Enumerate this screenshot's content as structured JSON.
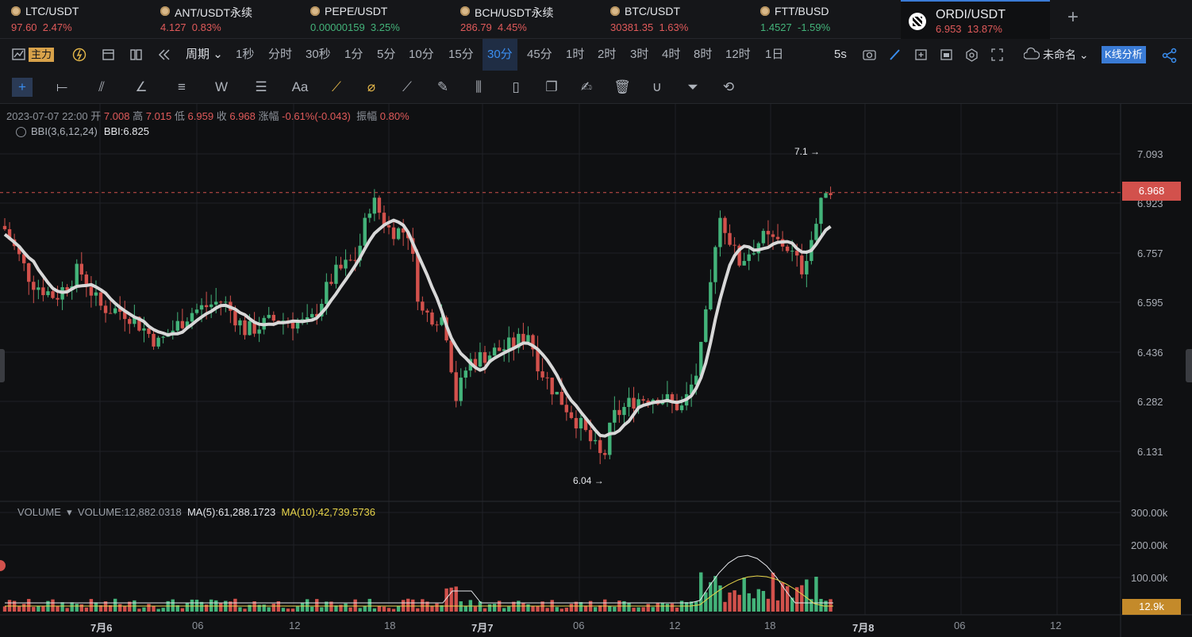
{
  "tickers": [
    {
      "symbol": "LTC/USDT",
      "price": "97.60",
      "change": "2.47%",
      "color": "red"
    },
    {
      "symbol": "ANT/USDT永续",
      "price": "4.127",
      "change": "0.83%",
      "color": "red"
    },
    {
      "symbol": "PEPE/USDT",
      "price": "0.00000159",
      "change": "3.25%",
      "color": "green"
    },
    {
      "symbol": "BCH/USDT永续",
      "price": "286.79",
      "change": "4.45%",
      "color": "red"
    },
    {
      "symbol": "BTC/USDT",
      "price": "30381.35",
      "change": "1.63%",
      "color": "red"
    },
    {
      "symbol": "FTT/BUSD",
      "price": "1.4527",
      "change": "-1.59%",
      "color": "green"
    },
    {
      "symbol": "ORDI/USDT",
      "price": "6.953",
      "change": "13.87%",
      "color": "red",
      "active": true
    }
  ],
  "add_tab_icon": "plus-icon",
  "toolbar": {
    "main_label": "主力",
    "period_label": "周期",
    "intervals": [
      "1秒",
      "分时",
      "30秒",
      "1分",
      "5分",
      "10分",
      "15分",
      "30分",
      "45分",
      "1时",
      "2时",
      "3时",
      "4时",
      "8时",
      "12时",
      "1日"
    ],
    "selected_interval": "30分",
    "refresh": "5s",
    "unnamed": "未命名",
    "kline_analysis": "K线分析"
  },
  "drawing_tools": [
    "crosshair-icon",
    "horizontal-line-icon",
    "parallel-channel-icon",
    "angle-icon",
    "fib-icon",
    "wave-icon",
    "gann-icon",
    "text-icon",
    "brush-icon",
    "eraser-icon",
    "ruler-icon",
    "pen-icon",
    "candles-icon",
    "lock-icon",
    "duplicate-icon",
    "note-icon",
    "trash-icon",
    "magnet-icon",
    "filter-icon",
    "sync-icon"
  ],
  "ohlc": {
    "date": "2023-07-07 22:00",
    "open_label": "开",
    "open": "7.008",
    "high_label": "高",
    "high": "7.015",
    "low_label": "低",
    "low": "6.959",
    "close_label": "收",
    "close": "6.968",
    "chg_label": "涨幅",
    "chg": "-0.61%(-0.043)",
    "amp_label": "振幅",
    "amp": "0.80%"
  },
  "bbi": {
    "label": "BBI(3,6,12,24)",
    "value": "BBI:6.825"
  },
  "price_axis": [
    "7.093",
    "6.923",
    "6.757",
    "6.595",
    "6.436",
    "6.282",
    "6.131"
  ],
  "current_price": "6.968",
  "annotations": {
    "high_note": "7.1",
    "low_note": "6.04"
  },
  "volume": {
    "label": "VOLUME",
    "value": "VOLUME:12,882.0318",
    "ma5": "MA(5):61,288.1723",
    "ma10": "MA(10):42,739.5736",
    "axis": [
      "300.00k",
      "200.00k",
      "100.00k"
    ],
    "current": "12.9k"
  },
  "time_axis": [
    "7月6",
    "06",
    "12",
    "18",
    "7月7",
    "06",
    "12",
    "18",
    "7月8",
    "06",
    "12"
  ],
  "colors": {
    "up": "#43b37a",
    "down": "#d2514c",
    "bbi": "#d8d8d8",
    "ma10": "#e8d54a"
  },
  "chart_data": {
    "type": "candlestick",
    "interval": "30分",
    "symbol": "ORDI/USDT",
    "y_ticks": [
      7.093,
      6.923,
      6.757,
      6.595,
      6.436,
      6.282,
      6.131
    ],
    "current_price": 6.968,
    "high_marker": 7.1,
    "low_marker": 6.04,
    "last_candle": {
      "open": 7.008,
      "high": 7.015,
      "low": 6.959,
      "close": 6.968
    },
    "bbi_value": 6.825,
    "volume_ticks": [
      300000,
      200000,
      100000
    ],
    "x_ticks": [
      "7月6",
      "06",
      "12",
      "18",
      "7月7",
      "06",
      "12",
      "18",
      "7月8",
      "06",
      "12"
    ]
  }
}
